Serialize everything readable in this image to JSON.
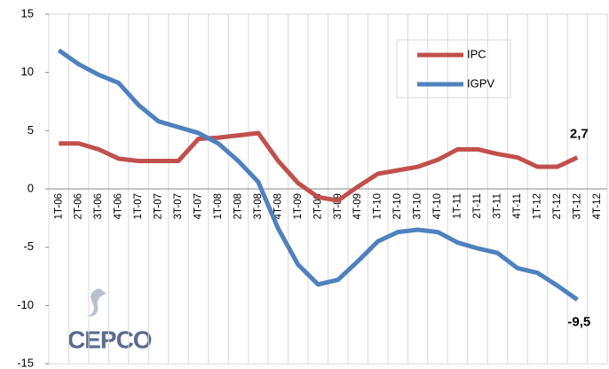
{
  "chart_data": {
    "type": "line",
    "categories": [
      "1T-06",
      "2T-06",
      "3T-06",
      "4T-06",
      "1T-07",
      "2T-07",
      "3T-07",
      "4T-07",
      "1T-08",
      "2T-08",
      "3T-08",
      "4T-08",
      "1T-09",
      "2T-09",
      "3T-09",
      "4T-09",
      "1T-10",
      "2T-10",
      "3T-10",
      "4T-10",
      "1T-11",
      "2T-11",
      "3T-11",
      "4T-11",
      "1T-12",
      "2T-12",
      "3T-12",
      "4T-12"
    ],
    "series": [
      {
        "name": "IPC",
        "color": "#c0504d",
        "values": [
          3.9,
          3.9,
          3.4,
          2.6,
          2.4,
          2.4,
          2.4,
          4.3,
          4.4,
          4.6,
          4.8,
          2.4,
          0.5,
          -0.7,
          -1.0,
          0.2,
          1.3,
          1.6,
          1.9,
          2.5,
          3.4,
          3.4,
          3.0,
          2.7,
          1.9,
          1.9,
          2.7,
          null
        ],
        "value_labels": [
          null,
          null,
          null,
          null,
          null,
          null,
          null,
          null,
          null,
          null,
          null,
          null,
          null,
          null,
          null,
          null,
          null,
          null,
          null,
          null,
          null,
          null,
          null,
          null,
          null,
          null,
          "2,7",
          null
        ]
      },
      {
        "name": "IGPV",
        "color": "#4f81bd",
        "values": [
          11.9,
          10.7,
          9.8,
          9.1,
          7.2,
          5.8,
          5.3,
          4.8,
          3.9,
          2.4,
          0.6,
          -3.4,
          -6.5,
          -8.2,
          -7.8,
          -6.2,
          -4.5,
          -3.7,
          -3.5,
          -3.7,
          -4.6,
          -5.1,
          -5.5,
          -6.8,
          -7.2,
          -8.3,
          -9.5,
          null
        ],
        "value_labels": [
          null,
          null,
          null,
          null,
          null,
          null,
          null,
          null,
          null,
          null,
          null,
          null,
          null,
          null,
          null,
          null,
          null,
          null,
          null,
          null,
          null,
          null,
          null,
          null,
          null,
          null,
          "-9,5",
          null
        ]
      }
    ],
    "ylim": [
      -15,
      15
    ],
    "yticks": [
      -15,
      -10,
      -5,
      0,
      5,
      10,
      15
    ],
    "logo": "CEPCO"
  }
}
